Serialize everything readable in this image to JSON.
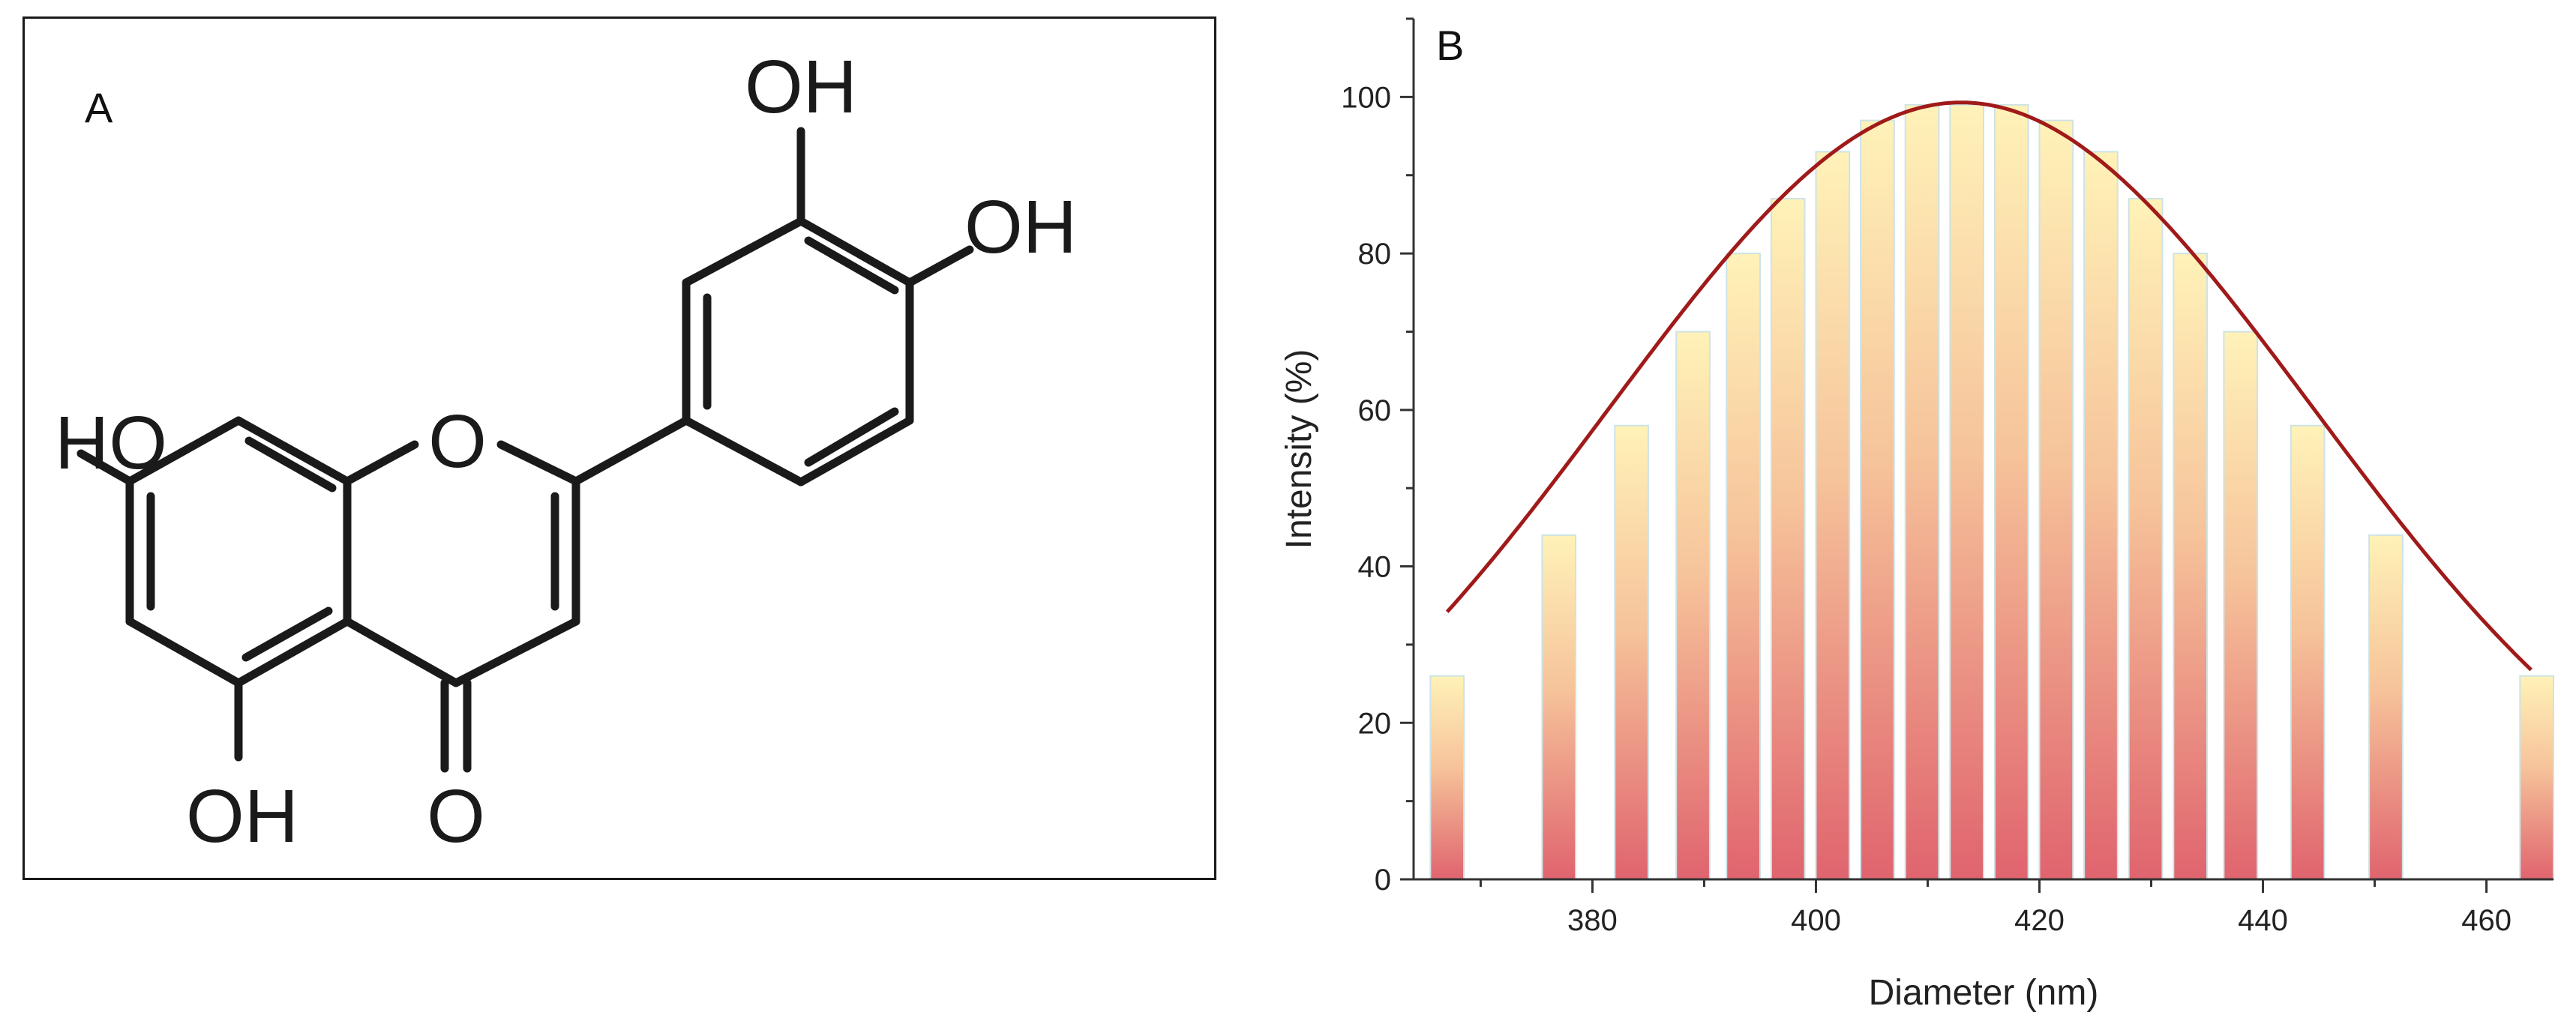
{
  "panel_a": {
    "label": "A",
    "atoms": {
      "oh_top": "OH",
      "oh_right": "OH",
      "ho_left": "HO",
      "ring_o": "O",
      "oh_bottom": "OH",
      "carbonyl_o": "O"
    }
  },
  "chart_data": {
    "type": "bar",
    "panel_label": "B",
    "xlabel": "Diameter (nm)",
    "ylabel": "Intensity (%)",
    "xlim": [
      364,
      466
    ],
    "ylim": [
      0,
      110
    ],
    "xticks": [
      380,
      400,
      420,
      440,
      460
    ],
    "yticks": [
      0,
      20,
      40,
      60,
      80,
      100
    ],
    "bars": [
      {
        "x": 367.0,
        "value": 26
      },
      {
        "x": 377.0,
        "value": 44
      },
      {
        "x": 383.5,
        "value": 58
      },
      {
        "x": 389.0,
        "value": 70
      },
      {
        "x": 393.5,
        "value": 80
      },
      {
        "x": 397.5,
        "value": 87
      },
      {
        "x": 401.5,
        "value": 93
      },
      {
        "x": 405.5,
        "value": 97
      },
      {
        "x": 409.5,
        "value": 99
      },
      {
        "x": 413.5,
        "value": 99
      },
      {
        "x": 417.5,
        "value": 99
      },
      {
        "x": 421.5,
        "value": 97
      },
      {
        "x": 425.5,
        "value": 93
      },
      {
        "x": 429.5,
        "value": 87
      },
      {
        "x": 433.5,
        "value": 80
      },
      {
        "x": 438.0,
        "value": 70
      },
      {
        "x": 444.0,
        "value": 58
      },
      {
        "x": 451.0,
        "value": 44
      },
      {
        "x": 464.5,
        "value": 26
      }
    ],
    "fit_curve": {
      "type": "gaussian",
      "center": 413,
      "peak": 99.3,
      "sigma": 31.5,
      "x_range": [
        367,
        464
      ],
      "color": "#a01a1a"
    },
    "bar_colors": {
      "top": "#fff2b8",
      "bottom": "#e0646e"
    },
    "grid": false,
    "legend": "none"
  }
}
